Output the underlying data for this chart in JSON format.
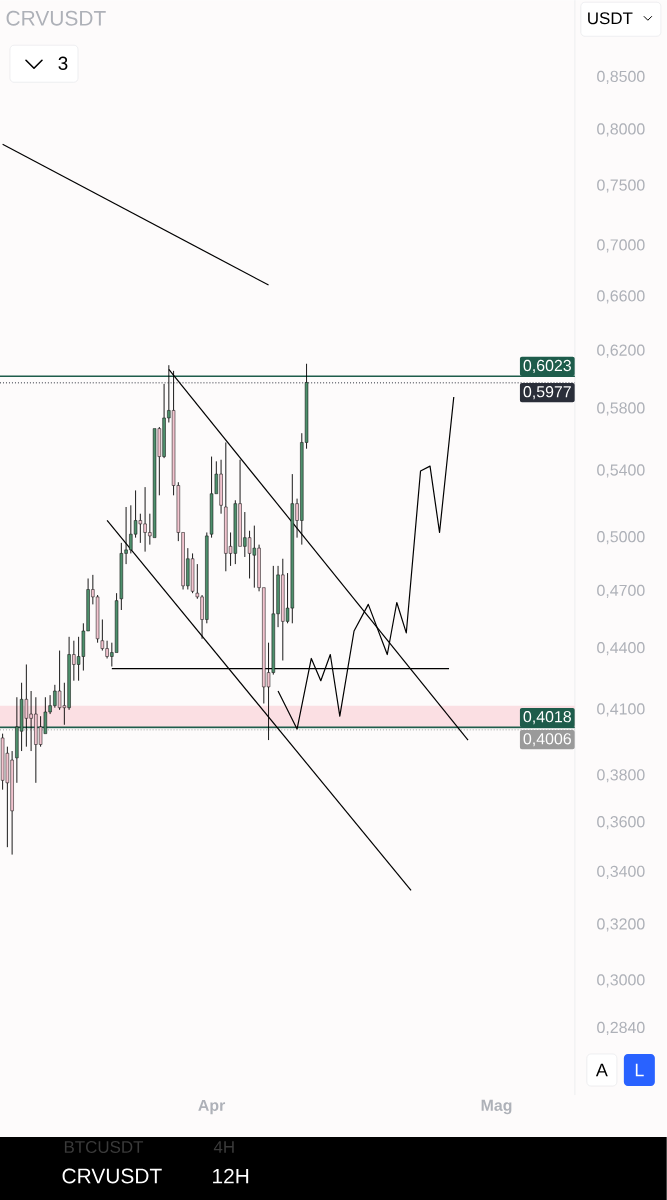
{
  "chart_data": {
    "type": "candlestick",
    "title": "CRVUSDT",
    "annotations": [
      "3",
      "USDT",
      "A",
      "L",
      "CRVUSDT",
      "12H",
      "BTCUSDT",
      "4H"
    ],
    "categories": [
      null,
      null,
      null,
      null,
      null,
      null,
      null,
      null,
      null,
      null,
      null,
      null,
      null,
      null,
      null,
      null,
      null,
      null,
      null,
      null,
      null,
      null,
      null,
      null,
      null,
      null,
      null,
      null,
      null,
      null,
      null,
      null,
      null,
      null,
      null,
      null,
      null,
      null,
      null,
      null,
      null,
      null,
      null,
      null,
      "Apr",
      null,
      null,
      null,
      null,
      null,
      null,
      null,
      null,
      null,
      null,
      null,
      null,
      null,
      null,
      null,
      null,
      null,
      null,
      null,
      null,
      null,
      null,
      null,
      null,
      null,
      null,
      null,
      null,
      null,
      null,
      null,
      null,
      null,
      null,
      null,
      null,
      null,
      null,
      null,
      null,
      null,
      null,
      null,
      null,
      null,
      null,
      null,
      null,
      null,
      null,
      null,
      null,
      null,
      null,
      null,
      null,
      null,
      null,
      null,
      "Mag",
      null,
      null,
      null,
      null,
      null,
      null,
      null,
      null,
      null,
      null,
      null,
      null,
      null,
      null,
      null,
      null
    ],
    "ohlc": [
      [
        0.397,
        0.399,
        0.374,
        0.378
      ],
      [
        0.39,
        0.393,
        0.35,
        0.377
      ],
      [
        0.387,
        0.391,
        0.347,
        0.365
      ],
      [
        0.388,
        0.416,
        0.377,
        0.402
      ],
      [
        0.4,
        0.423,
        0.391,
        0.415
      ],
      [
        0.415,
        0.432,
        0.393,
        0.406
      ],
      [
        0.408,
        0.419,
        0.391,
        0.406
      ],
      [
        0.408,
        0.416,
        0.377,
        0.394
      ],
      [
        0.402,
        0.407,
        0.393,
        0.394
      ],
      [
        0.399,
        0.416,
        0.399,
        0.409
      ],
      [
        0.409,
        0.417,
        0.408,
        0.412
      ],
      [
        0.412,
        0.422,
        0.411,
        0.419
      ],
      [
        0.419,
        0.439,
        0.41,
        0.411
      ],
      [
        0.412,
        0.423,
        0.403,
        0.411
      ],
      [
        0.411,
        0.446,
        0.41,
        0.437
      ],
      [
        0.437,
        0.444,
        0.424,
        0.432
      ],
      [
        0.432,
        0.446,
        0.424,
        0.436
      ],
      [
        0.436,
        0.453,
        0.429,
        0.449
      ],
      [
        0.449,
        0.477,
        0.449,
        0.471
      ],
      [
        0.471,
        0.479,
        0.463,
        0.467
      ],
      [
        0.467,
        0.468,
        0.443,
        0.445
      ],
      [
        0.444,
        0.455,
        0.439,
        0.44
      ],
      [
        0.44,
        0.444,
        0.435,
        0.436
      ],
      [
        0.436,
        0.443,
        0.431,
        0.438
      ],
      [
        0.438,
        0.469,
        0.438,
        0.465
      ],
      [
        0.466,
        0.497,
        0.46,
        0.491
      ],
      [
        0.491,
        0.518,
        0.485,
        0.493
      ],
      [
        0.493,
        0.519,
        0.491,
        0.502
      ],
      [
        0.502,
        0.528,
        0.5,
        0.51
      ],
      [
        0.51,
        0.514,
        0.497,
        0.508
      ],
      [
        0.508,
        0.53,
        0.492,
        0.503
      ],
      [
        0.503,
        0.514,
        0.496,
        0.501
      ],
      [
        0.5,
        0.567,
        0.5,
        0.567
      ],
      [
        0.567,
        0.568,
        0.525,
        0.549
      ],
      [
        0.549,
        0.597,
        0.548,
        0.574
      ],
      [
        0.574,
        0.61,
        0.571,
        0.579
      ],
      [
        0.579,
        0.606,
        0.525,
        0.531
      ],
      [
        0.531,
        0.533,
        0.498,
        0.503
      ],
      [
        0.503,
        0.503,
        0.471,
        0.473
      ],
      [
        0.473,
        0.494,
        0.471,
        0.488
      ],
      [
        0.488,
        0.491,
        0.469,
        0.47
      ],
      [
        0.469,
        0.485,
        0.466,
        0.467
      ],
      [
        0.467,
        0.468,
        0.445,
        0.455
      ],
      [
        0.455,
        0.503,
        0.453,
        0.501
      ],
      [
        0.502,
        0.549,
        0.5,
        0.526
      ],
      [
        0.526,
        0.546,
        0.526,
        0.538
      ],
      [
        0.538,
        0.547,
        0.514,
        0.519
      ],
      [
        0.518,
        0.558,
        0.481,
        0.491
      ],
      [
        0.495,
        0.503,
        0.484,
        0.491
      ],
      [
        0.491,
        0.522,
        0.485,
        0.52
      ],
      [
        0.52,
        0.547,
        0.495,
        0.495
      ],
      [
        0.495,
        0.515,
        0.489,
        0.5
      ],
      [
        0.5,
        0.504,
        0.477,
        0.491
      ],
      [
        0.49,
        0.507,
        0.472,
        0.494
      ],
      [
        0.494,
        0.496,
        0.47,
        0.472
      ],
      [
        0.472,
        0.472,
        0.413,
        0.421
      ],
      [
        0.428,
        0.443,
        0.396,
        0.421
      ],
      [
        0.428,
        0.484,
        0.427,
        0.458
      ],
      [
        0.458,
        0.484,
        0.451,
        0.479
      ],
      [
        0.479,
        0.488,
        0.434,
        0.454
      ],
      [
        0.454,
        0.48,
        0.453,
        0.461
      ],
      [
        0.461,
        0.538,
        0.453,
        0.52
      ],
      [
        0.52,
        0.523,
        0.5,
        0.51
      ],
      [
        0.51,
        0.564,
        0.496,
        0.558
      ],
      [
        0.558,
        0.611,
        0.554,
        0.598
      ],
      null,
      null,
      null,
      null,
      null,
      null,
      null,
      null,
      null,
      null,
      null,
      null,
      null,
      null,
      null,
      null,
      null,
      null,
      null,
      null,
      null,
      null,
      null,
      null,
      null,
      null,
      null,
      null,
      null,
      null,
      null,
      null,
      null,
      null,
      null,
      null,
      null,
      null,
      null,
      null,
      null,
      null,
      null,
      null,
      null,
      null,
      null,
      null,
      null,
      null,
      null,
      null,
      null,
      null,
      null,
      null
    ],
    "colors": [
      "#f2c4cf",
      "#f2c4cf",
      "#f2c4cf",
      "#4e8f6c",
      "#4e8f6c",
      "#f2c4cf",
      "#f2c4cf",
      "#f2c4cf",
      "#f2c4cf",
      "#4e8f6c",
      "#4e8f6c",
      "#4e8f6c",
      "#f2c4cf",
      "#f2c4cf",
      "#4e8f6c",
      "#f2c4cf",
      "#4e8f6c",
      "#4e8f6c",
      "#4e8f6c",
      "#f2c4cf",
      "#f2c4cf",
      "#f2c4cf",
      "#f2c4cf",
      "#4e8f6c",
      "#4e8f6c",
      "#4e8f6c",
      "#4e8f6c",
      "#4e8f6c",
      "#4e8f6c",
      "#f2c4cf",
      "#f2c4cf",
      "#f2c4cf",
      "#4e8f6c",
      "#f2c4cf",
      "#4e8f6c",
      "#4e8f6c",
      "#f2c4cf",
      "#f2c4cf",
      "#f2c4cf",
      "#4e8f6c",
      "#f2c4cf",
      "#f2c4cf",
      "#f2c4cf",
      "#4e8f6c",
      "#4e8f6c",
      "#4e8f6c",
      "#f2c4cf",
      "#f2c4cf",
      "#f2c4cf",
      "#4e8f6c",
      "#f2c4cf",
      "#4e8f6c",
      "#f2c4cf",
      "#4e8f6c",
      "#f2c4cf",
      "#f2c4cf",
      "#f2c4cf",
      "#4e8f6c",
      "#4e8f6c",
      "#f2c4cf",
      "#4e8f6c",
      "#4e8f6c",
      "#f2c4cf",
      "#4e8f6c",
      "#4e8f6c",
      null,
      null,
      null,
      null,
      null,
      null,
      null,
      null,
      null,
      null,
      null,
      null,
      null,
      null,
      null,
      null,
      null,
      null,
      null,
      null,
      null,
      null,
      null,
      null,
      null,
      null,
      null,
      null,
      null,
      null,
      null,
      null,
      null,
      null,
      null,
      null,
      null,
      null,
      null,
      null,
      null,
      null,
      null,
      null,
      null,
      null,
      null,
      null,
      null,
      null,
      null,
      null,
      null,
      null,
      null,
      null
    ],
    "series": [
      {
        "type": "line",
        "color": "#000000",
        "values": [
          0.787,
          null,
          null,
          null,
          null,
          null,
          null,
          null,
          null,
          null,
          null,
          null,
          null,
          null,
          null,
          null,
          null,
          null,
          null,
          null,
          null,
          null,
          null,
          null,
          null,
          null,
          null,
          null,
          null,
          null,
          null,
          null,
          null,
          null,
          null,
          null,
          null,
          null,
          null,
          null,
          null,
          null,
          null,
          null,
          null,
          null,
          null,
          null,
          null,
          null,
          null,
          null,
          null,
          null,
          null,
          null,
          0.669,
          null,
          null,
          null,
          null,
          null,
          null,
          null,
          null,
          null,
          null,
          null,
          null,
          null,
          null,
          null,
          null,
          null,
          null,
          null,
          null,
          null,
          null,
          null,
          null,
          null,
          null,
          null,
          null,
          null,
          null,
          null,
          null,
          null,
          null,
          null,
          null,
          null,
          null,
          null,
          null,
          null,
          null,
          null,
          null,
          null,
          null,
          null,
          null,
          null,
          null,
          null,
          null,
          null,
          null,
          null,
          null,
          null,
          null,
          null,
          null,
          null,
          null,
          null,
          null
        ]
      },
      {
        "type": "line",
        "color": "#000000",
        "values": [
          null,
          null,
          null,
          null,
          null,
          null,
          null,
          null,
          null,
          null,
          null,
          null,
          null,
          null,
          null,
          null,
          null,
          null,
          null,
          null,
          null,
          null,
          null,
          null,
          null,
          null,
          null,
          null,
          null,
          null,
          null,
          null,
          null,
          null,
          null,
          0.607,
          null,
          null,
          null,
          null,
          null,
          null,
          null,
          null,
          null,
          null,
          null,
          null,
          null,
          null,
          null,
          null,
          null,
          null,
          null,
          null,
          null,
          null,
          null,
          null,
          null,
          null,
          null,
          null,
          null,
          null,
          null,
          null,
          null,
          null,
          null,
          null,
          null,
          null,
          null,
          null,
          null,
          null,
          null,
          null,
          null,
          null,
          null,
          null,
          null,
          null,
          null,
          null,
          null,
          null,
          null,
          null,
          null,
          null,
          null,
          null,
          null,
          null,
          0.396,
          null,
          null,
          null,
          null,
          null,
          null,
          null,
          null,
          null,
          null,
          null,
          null,
          null,
          null,
          null,
          null,
          null,
          null,
          null,
          null,
          null,
          null
        ]
      },
      {
        "type": "line",
        "color": "#000000",
        "values": [
          null,
          null,
          null,
          null,
          null,
          null,
          null,
          null,
          null,
          null,
          null,
          null,
          null,
          null,
          null,
          null,
          null,
          null,
          null,
          null,
          null,
          null,
          0.51,
          null,
          null,
          null,
          null,
          null,
          null,
          null,
          null,
          null,
          null,
          null,
          null,
          null,
          null,
          null,
          null,
          null,
          null,
          null,
          null,
          null,
          null,
          null,
          null,
          null,
          null,
          null,
          null,
          null,
          null,
          null,
          null,
          null,
          null,
          null,
          null,
          null,
          null,
          null,
          null,
          null,
          null,
          null,
          null,
          null,
          null,
          null,
          null,
          null,
          null,
          null,
          null,
          null,
          null,
          null,
          null,
          null,
          null,
          null,
          null,
          null,
          null,
          null,
          0.333,
          null,
          null,
          null,
          null,
          null,
          null,
          null,
          null,
          null,
          null,
          null,
          null,
          null,
          null,
          null,
          null,
          null,
          null,
          null,
          null,
          null,
          null,
          null,
          null,
          null,
          null,
          null,
          null,
          null,
          null,
          null,
          null,
          null,
          null
        ]
      },
      {
        "type": "line",
        "color": "#000000",
        "values": [
          null,
          null,
          null,
          null,
          null,
          null,
          null,
          null,
          null,
          null,
          null,
          null,
          null,
          null,
          null,
          null,
          null,
          null,
          null,
          null,
          null,
          null,
          null,
          0.43,
          null,
          null,
          null,
          null,
          null,
          null,
          null,
          null,
          null,
          null,
          null,
          null,
          null,
          null,
          null,
          null,
          null,
          null,
          null,
          null,
          null,
          null,
          null,
          null,
          null,
          null,
          null,
          null,
          null,
          null,
          null,
          null,
          null,
          null,
          null,
          null,
          null,
          null,
          null,
          null,
          null,
          null,
          null,
          null,
          null,
          null,
          null,
          null,
          null,
          null,
          null,
          null,
          null,
          null,
          null,
          null,
          null,
          null,
          null,
          null,
          null,
          null,
          null,
          null,
          null,
          null,
          null,
          null,
          null,
          null,
          0.43,
          null,
          null,
          null,
          null,
          null,
          null,
          null,
          null,
          null,
          null,
          null,
          null,
          null,
          null,
          null,
          null,
          null,
          null,
          null,
          null,
          null,
          null,
          null,
          null,
          null,
          null
        ]
      },
      {
        "type": "line",
        "color": "#000000",
        "values": [
          null,
          null,
          null,
          null,
          null,
          null,
          null,
          null,
          null,
          null,
          null,
          null,
          null,
          null,
          null,
          null,
          null,
          null,
          null,
          null,
          null,
          null,
          null,
          null,
          null,
          null,
          null,
          null,
          null,
          null,
          null,
          null,
          null,
          null,
          null,
          null,
          null,
          null,
          null,
          null,
          null,
          null,
          null,
          null,
          null,
          null,
          null,
          null,
          null,
          null,
          null,
          null,
          null,
          null,
          null,
          null,
          null,
          null,
          0.419,
          null,
          null,
          null,
          0.401,
          null,
          null,
          0.435,
          null,
          0.424,
          null,
          0.437,
          null,
          0.407,
          null,
          null,
          0.449,
          null,
          null,
          0.463,
          null,
          null,
          null,
          0.437,
          null,
          0.464,
          null,
          0.448,
          null,
          null,
          0.54,
          null,
          0.543,
          null,
          0.503,
          null,
          null,
          0.588,
          null,
          null,
          null,
          null,
          null,
          null,
          null,
          null,
          null,
          null,
          null,
          null,
          null,
          null,
          null,
          null,
          null,
          null,
          null,
          null,
          null,
          null,
          null,
          null,
          null
        ]
      }
    ],
    "ref_lines": [
      {
        "axis": "y",
        "value": 0.6023,
        "label": "0,6023",
        "color": "#1e5c4b",
        "line_style": "solid"
      },
      {
        "axis": "y",
        "value": 0.5977,
        "label": "0,5977",
        "color": "#2a2e39",
        "line_style": "dotted"
      },
      {
        "axis": "y",
        "value": 0.4018,
        "label": "0,4018",
        "color": "#1e5c4b",
        "line_style": "solid"
      },
      {
        "axis": "y",
        "value": 0.4006,
        "label": "0,4006",
        "color": "#9a9a9a",
        "line_style": "dotted"
      }
    ],
    "bands": [
      {
        "axis": "y",
        "from": 0.4018,
        "to": 0.412,
        "color": "#fbdfe3"
      }
    ],
    "log": "y",
    "ylim": [
      0.263,
      0.929
    ],
    "yticks": [
      {
        "value": 0.85,
        "label": "0,8500"
      },
      {
        "value": 0.8,
        "label": "0,8000"
      },
      {
        "value": 0.75,
        "label": "0,7500"
      },
      {
        "value": 0.7,
        "label": "0,7000"
      },
      {
        "value": 0.66,
        "label": "0,6600"
      },
      {
        "value": 0.62,
        "label": "0,6200"
      },
      {
        "value": 0.58,
        "label": "0,5800"
      },
      {
        "value": 0.54,
        "label": "0,5400"
      },
      {
        "value": 0.5,
        "label": "0,5000"
      },
      {
        "value": 0.47,
        "label": "0,4700"
      },
      {
        "value": 0.44,
        "label": "0,4400"
      },
      {
        "value": 0.41,
        "label": "0,4100"
      },
      {
        "value": 0.38,
        "label": "0,3800"
      },
      {
        "value": 0.36,
        "label": "0,3600"
      },
      {
        "value": 0.34,
        "label": "0,3400"
      },
      {
        "value": 0.32,
        "label": "0,3200"
      },
      {
        "value": 0.3,
        "label": "0,3000"
      },
      {
        "value": 0.284,
        "label": "0,2840"
      }
    ]
  }
}
